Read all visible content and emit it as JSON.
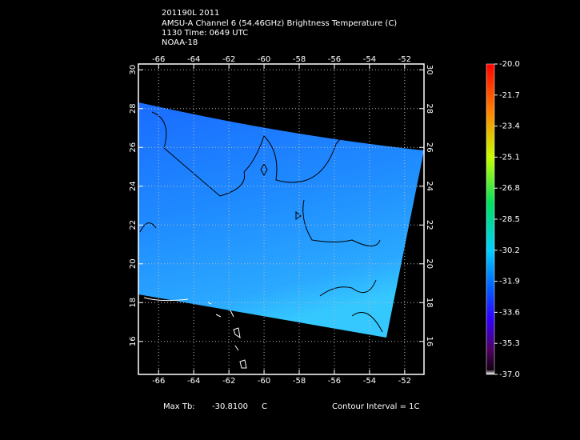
{
  "header": {
    "lines": [
      "201190L 2011",
      "AMSU-A Channel 6 (54.46GHz) Brightness Temperature (C)",
      "1130 Time: 0649 UTC",
      "NOAA-18"
    ]
  },
  "map": {
    "xlim": [
      -67.15,
      -50.9
    ],
    "ylim": [
      14.3,
      30.3
    ],
    "xticks": [
      -66,
      -64,
      -62,
      -60,
      -58,
      -56,
      -54,
      -52
    ],
    "yticks": [
      16,
      18,
      20,
      22,
      24,
      26,
      28,
      30
    ]
  },
  "colorbar": {
    "lim": [
      -37,
      -20
    ],
    "ticks": [
      {
        "value": -20,
        "label": "-20.0"
      },
      {
        "value": -21.7,
        "label": "-21.7"
      },
      {
        "value": -23.4,
        "label": "-23.4"
      },
      {
        "value": -25.1,
        "label": "-25.1"
      },
      {
        "value": -26.8,
        "label": "-26.8"
      },
      {
        "value": -28.5,
        "label": "-28.5"
      },
      {
        "value": -30.2,
        "label": "-30.2"
      },
      {
        "value": -31.9,
        "label": "-31.9"
      },
      {
        "value": -33.6,
        "label": "-33.6"
      },
      {
        "value": -35.3,
        "label": "-35.3"
      },
      {
        "value": -37,
        "label": "-37.0"
      }
    ]
  },
  "footer": {
    "max_label": "Max Tb:",
    "max_value": "-30.8100",
    "max_unit": "C",
    "contour": "Contour Interval = 1C"
  }
}
